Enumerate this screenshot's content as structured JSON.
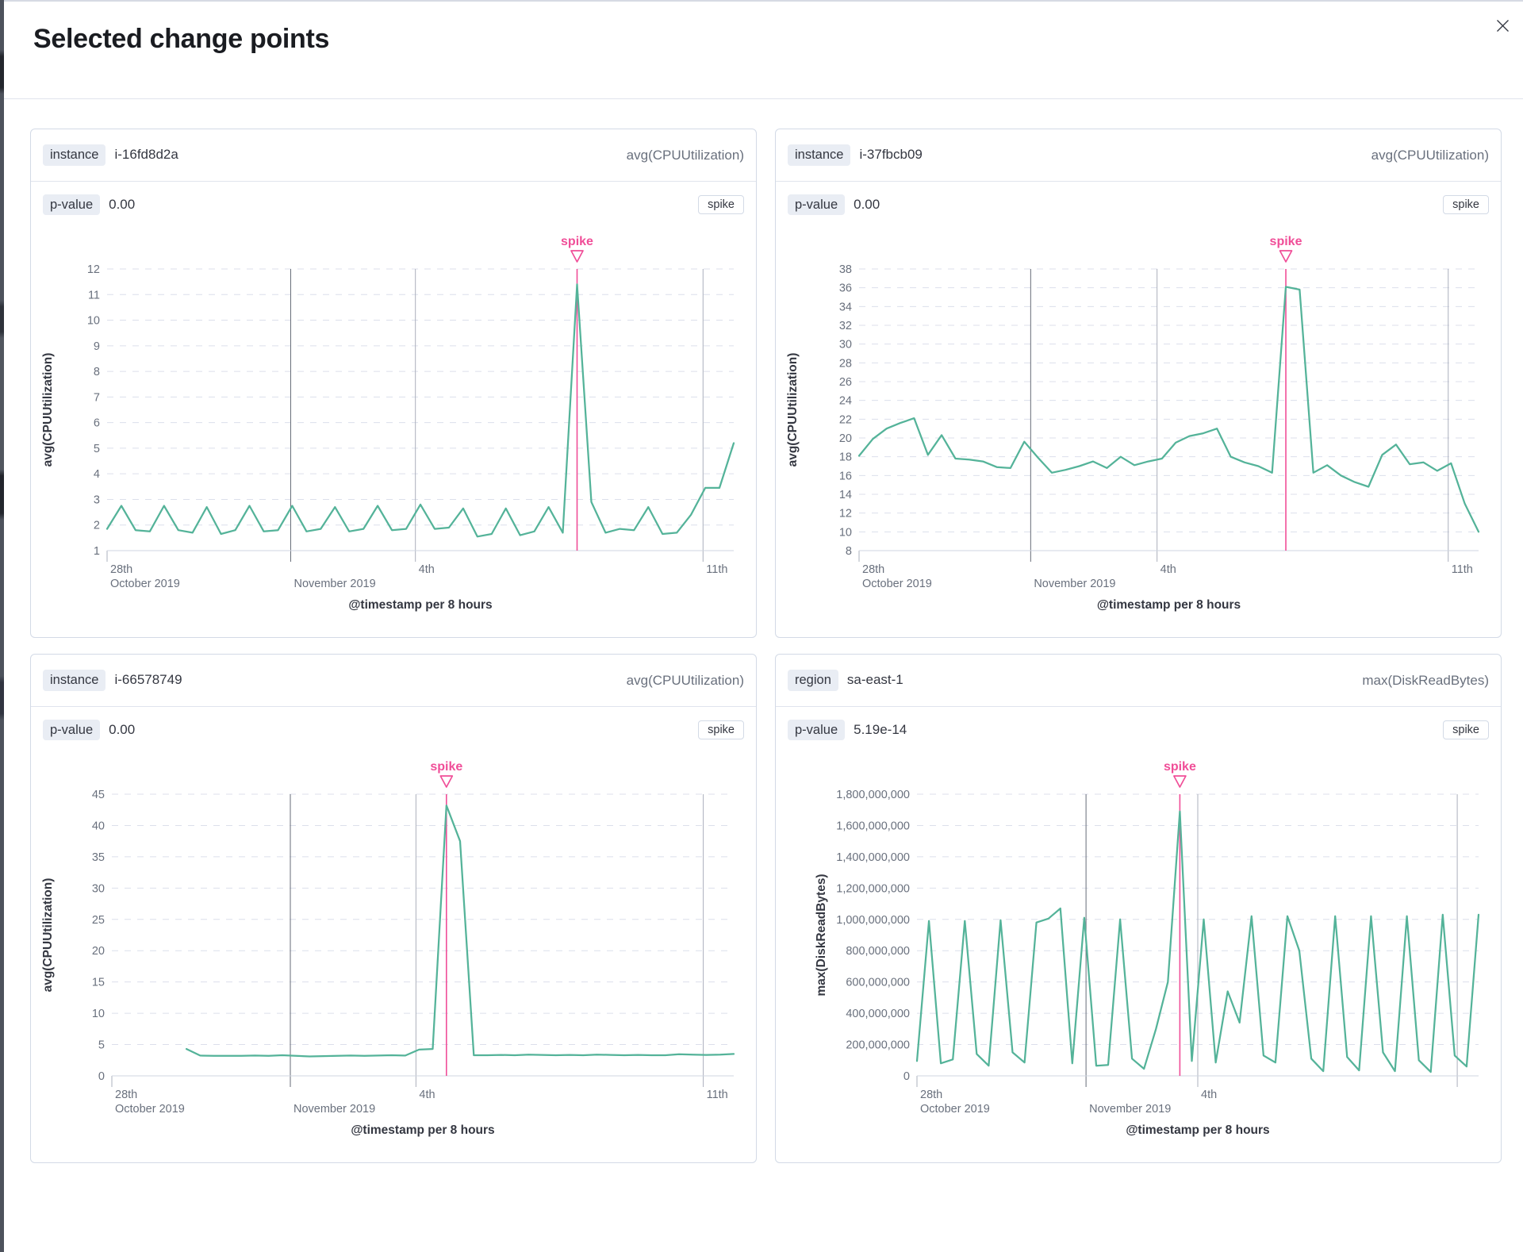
{
  "title": "Selected change points",
  "colors": {
    "series": "#54b399",
    "annotation": "#f04e98"
  },
  "panels": [
    {
      "field_label": "instance",
      "field_value": "i-16fd8d2a",
      "metric_label": "avg(CPUUtilization)",
      "p_value_label": "p-value",
      "p_value": "0.00",
      "type_chip": "spike"
    },
    {
      "field_label": "instance",
      "field_value": "i-37fbcb09",
      "metric_label": "avg(CPUUtilization)",
      "p_value_label": "p-value",
      "p_value": "0.00",
      "type_chip": "spike"
    },
    {
      "field_label": "instance",
      "field_value": "i-66578749",
      "metric_label": "avg(CPUUtilization)",
      "p_value_label": "p-value",
      "p_value": "0.00",
      "type_chip": "spike"
    },
    {
      "field_label": "region",
      "field_value": "sa-east-1",
      "metric_label": "max(DiskReadBytes)",
      "p_value_label": "p-value",
      "p_value": "5.19e-14",
      "type_chip": "spike"
    }
  ],
  "chart_data": [
    {
      "type": "line",
      "ylabel": "avg(CPUUtilization)",
      "xlabel": "@timestamp per 8 hours",
      "annotation_label": "spike",
      "ylim": [
        1,
        12
      ],
      "yticks": [
        {
          "v": 1,
          "label": "1"
        },
        {
          "v": 2,
          "label": "2"
        },
        {
          "v": 3,
          "label": "3"
        },
        {
          "v": 4,
          "label": "4"
        },
        {
          "v": 5,
          "label": "5"
        },
        {
          "v": 6,
          "label": "6"
        },
        {
          "v": 7,
          "label": "7"
        },
        {
          "v": 8,
          "label": "8"
        },
        {
          "v": 9,
          "label": "9"
        },
        {
          "v": 10,
          "label": "10"
        },
        {
          "v": 11,
          "label": "11"
        },
        {
          "v": 12,
          "label": "12"
        }
      ],
      "xticks": [
        {
          "frac": 0.0,
          "kind": "tick",
          "shade": "light",
          "label1": "28th",
          "label2": "October 2019"
        },
        {
          "frac": 0.293,
          "kind": "line",
          "shade": "dark",
          "label1": "",
          "label2": "November 2019"
        },
        {
          "frac": 0.492,
          "kind": "line",
          "shade": "light",
          "label1": "4th",
          "label2": ""
        },
        {
          "frac": 0.951,
          "kind": "line",
          "shade": "light",
          "label1": "11th",
          "label2": ""
        }
      ],
      "x_start_frac": 0.0,
      "spike_index": 33,
      "values": [
        1.85,
        2.75,
        1.8,
        1.75,
        2.75,
        1.8,
        1.7,
        2.7,
        1.65,
        1.8,
        2.75,
        1.75,
        1.8,
        2.75,
        1.75,
        1.85,
        2.7,
        1.75,
        1.85,
        2.75,
        1.8,
        1.85,
        2.8,
        1.85,
        1.9,
        2.65,
        1.55,
        1.65,
        2.65,
        1.6,
        1.75,
        2.7,
        1.7,
        11.4,
        2.9,
        1.7,
        1.85,
        1.8,
        2.7,
        1.65,
        1.7,
        2.4,
        3.45,
        3.45,
        5.2
      ]
    },
    {
      "type": "line",
      "ylabel": "avg(CPUUtilization)",
      "xlabel": "@timestamp per 8 hours",
      "annotation_label": "spike",
      "ylim": [
        8,
        38
      ],
      "yticks": [
        {
          "v": 8,
          "label": "8"
        },
        {
          "v": 10,
          "label": "10"
        },
        {
          "v": 12,
          "label": "12"
        },
        {
          "v": 14,
          "label": "14"
        },
        {
          "v": 16,
          "label": "16"
        },
        {
          "v": 18,
          "label": "18"
        },
        {
          "v": 20,
          "label": "20"
        },
        {
          "v": 22,
          "label": "22"
        },
        {
          "v": 24,
          "label": "24"
        },
        {
          "v": 26,
          "label": "26"
        },
        {
          "v": 28,
          "label": "28"
        },
        {
          "v": 30,
          "label": "30"
        },
        {
          "v": 32,
          "label": "32"
        },
        {
          "v": 34,
          "label": "34"
        },
        {
          "v": 36,
          "label": "36"
        },
        {
          "v": 38,
          "label": "38"
        }
      ],
      "xticks": [
        {
          "frac": 0.0,
          "kind": "tick",
          "shade": "light",
          "label1": "28th",
          "label2": "October 2019"
        },
        {
          "frac": 0.277,
          "kind": "line",
          "shade": "dark",
          "label1": "",
          "label2": "November 2019"
        },
        {
          "frac": 0.481,
          "kind": "line",
          "shade": "light",
          "label1": "4th",
          "label2": ""
        },
        {
          "frac": 0.951,
          "kind": "line",
          "shade": "light",
          "label1": "11th",
          "label2": ""
        }
      ],
      "x_start_frac": 0.0,
      "spike_index": 31,
      "values": [
        18.1,
        19.9,
        21.0,
        21.6,
        22.1,
        18.2,
        20.3,
        17.8,
        17.7,
        17.5,
        16.9,
        16.8,
        19.6,
        17.9,
        16.3,
        16.6,
        17.0,
        17.5,
        16.8,
        18.0,
        17.1,
        17.5,
        17.8,
        19.5,
        20.2,
        20.5,
        21.0,
        18.0,
        17.4,
        17.0,
        16.3,
        36.1,
        35.8,
        16.3,
        17.1,
        16.0,
        15.3,
        14.8,
        18.2,
        19.3,
        17.2,
        17.4,
        16.5,
        17.3,
        13.0,
        10.0
      ]
    },
    {
      "type": "line",
      "ylabel": "avg(CPUUtilization)",
      "xlabel": "@timestamp per 8 hours",
      "annotation_label": "spike",
      "ylim": [
        0,
        45
      ],
      "yticks": [
        {
          "v": 0,
          "label": "0"
        },
        {
          "v": 5,
          "label": "5"
        },
        {
          "v": 10,
          "label": "10"
        },
        {
          "v": 15,
          "label": "15"
        },
        {
          "v": 20,
          "label": "20"
        },
        {
          "v": 25,
          "label": "25"
        },
        {
          "v": 30,
          "label": "30"
        },
        {
          "v": 35,
          "label": "35"
        },
        {
          "v": 40,
          "label": "40"
        },
        {
          "v": 45,
          "label": "45"
        }
      ],
      "xticks": [
        {
          "frac": 0.0,
          "kind": "tick",
          "shade": "light",
          "label1": "28th",
          "label2": "October 2019"
        },
        {
          "frac": 0.287,
          "kind": "line",
          "shade": "dark",
          "label1": "",
          "label2": "November 2019"
        },
        {
          "frac": 0.489,
          "kind": "line",
          "shade": "light",
          "label1": "4th",
          "label2": ""
        },
        {
          "frac": 0.951,
          "kind": "line",
          "shade": "light",
          "label1": "11th",
          "label2": ""
        }
      ],
      "x_start_frac": 0.12,
      "spike_index": 19,
      "values": [
        4.3,
        3.25,
        3.2,
        3.2,
        3.2,
        3.25,
        3.2,
        3.3,
        3.2,
        3.1,
        3.15,
        3.2,
        3.25,
        3.2,
        3.25,
        3.3,
        3.25,
        4.2,
        4.3,
        43.2,
        37.5,
        3.3,
        3.3,
        3.35,
        3.3,
        3.4,
        3.35,
        3.3,
        3.35,
        3.3,
        3.4,
        3.35,
        3.3,
        3.35,
        3.3,
        3.3,
        3.45,
        3.4,
        3.35,
        3.4,
        3.5
      ]
    },
    {
      "type": "line",
      "ylabel": "max(DiskReadBytes)",
      "xlabel": "@timestamp per 8 hours",
      "annotation_label": "spike",
      "ylim": [
        0,
        1800000000
      ],
      "yticks": [
        {
          "v": 0,
          "label": "0"
        },
        {
          "v": 200000000,
          "label": "200,000,000"
        },
        {
          "v": 400000000,
          "label": "400,000,000"
        },
        {
          "v": 600000000,
          "label": "600,000,000"
        },
        {
          "v": 800000000,
          "label": "800,000,000"
        },
        {
          "v": 1000000000,
          "label": "1,000,000,000"
        },
        {
          "v": 1200000000,
          "label": "1,200,000,000"
        },
        {
          "v": 1400000000,
          "label": "1,400,000,000"
        },
        {
          "v": 1600000000,
          "label": "1,600,000,000"
        },
        {
          "v": 1800000000,
          "label": "1,800,000,000"
        }
      ],
      "xticks": [
        {
          "frac": 0.0,
          "kind": "tick",
          "shade": "light",
          "label1": "28th",
          "label2": "October 2019"
        },
        {
          "frac": 0.301,
          "kind": "line",
          "shade": "dark",
          "label1": "",
          "label2": "November 2019"
        },
        {
          "frac": 0.5,
          "kind": "line",
          "shade": "light",
          "label1": "4th",
          "label2": ""
        },
        {
          "frac": 0.962,
          "kind": "line",
          "shade": "light",
          "label1": "",
          "label2": ""
        }
      ],
      "x_start_frac": 0.0,
      "spike_index": 22,
      "values": [
        95000000,
        990000000,
        80000000,
        105000000,
        990000000,
        140000000,
        65000000,
        995000000,
        150000000,
        85000000,
        980000000,
        1005000000,
        1070000000,
        80000000,
        1010000000,
        65000000,
        70000000,
        1000000000,
        110000000,
        45000000,
        300000000,
        600000000,
        1690000000,
        95000000,
        1000000000,
        85000000,
        540000000,
        340000000,
        1020000000,
        130000000,
        85000000,
        1020000000,
        800000000,
        110000000,
        30000000,
        1020000000,
        120000000,
        35000000,
        1020000000,
        150000000,
        30000000,
        1020000000,
        100000000,
        25000000,
        1030000000,
        130000000,
        60000000,
        1030000000
      ]
    }
  ]
}
